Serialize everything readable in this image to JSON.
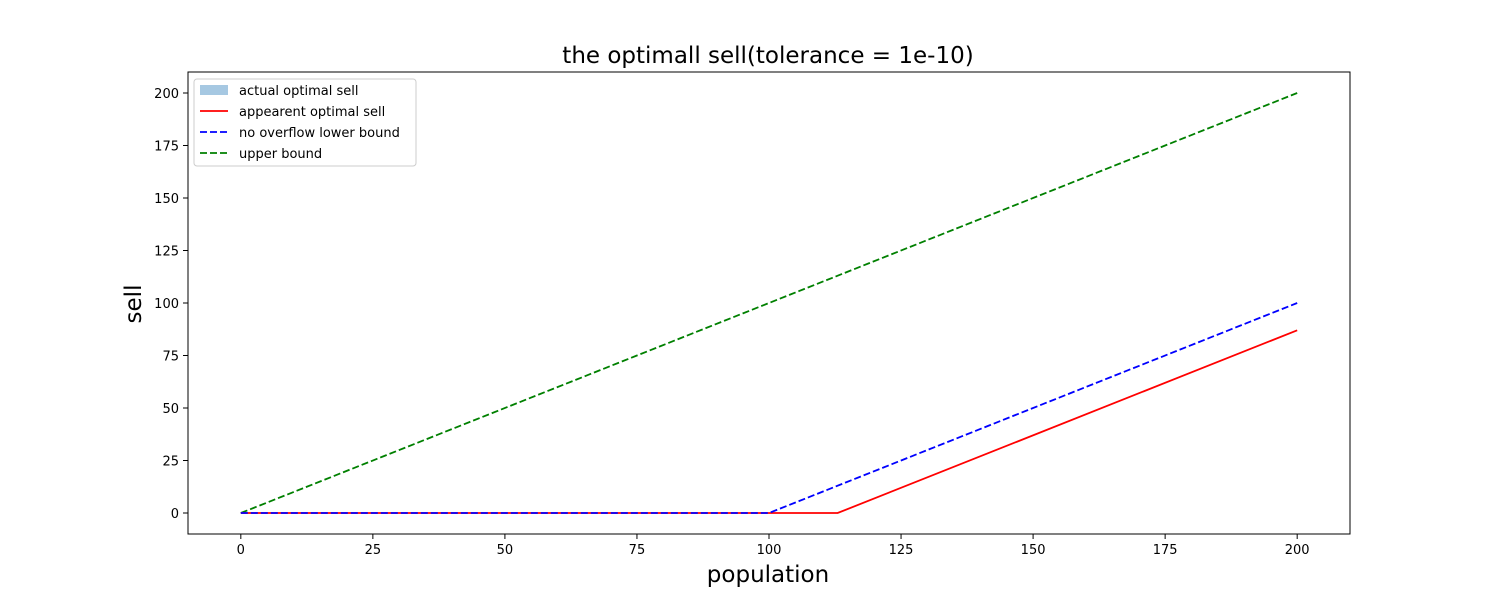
{
  "chart_data": {
    "type": "line",
    "title": "the optimall sell(tolerance = 1e-10)",
    "xlabel": "population",
    "ylabel": "sell",
    "xlim": [
      -10,
      210
    ],
    "ylim": [
      -10,
      210
    ],
    "xticks": [
      0,
      25,
      50,
      75,
      100,
      125,
      150,
      175,
      200
    ],
    "yticks": [
      0,
      25,
      50,
      75,
      100,
      125,
      150,
      175,
      200
    ],
    "grid": false,
    "legend_position": "upper-left",
    "series": [
      {
        "name": "actual optimal sell",
        "kind": "area",
        "color": "#a6c8e2",
        "x": [],
        "y": []
      },
      {
        "name": "appearent optimal sell",
        "kind": "line",
        "style": "solid",
        "color": "#ff0000",
        "x": [
          0,
          113,
          200
        ],
        "y": [
          0,
          0,
          87
        ]
      },
      {
        "name": "no overflow lower bound",
        "kind": "line",
        "style": "dashed",
        "color": "#0000ff",
        "x": [
          0,
          100,
          200
        ],
        "y": [
          0,
          0,
          100
        ]
      },
      {
        "name": "upper bound",
        "kind": "line",
        "style": "dashed",
        "color": "#008000",
        "x": [
          0,
          200
        ],
        "y": [
          0,
          200
        ]
      }
    ]
  }
}
